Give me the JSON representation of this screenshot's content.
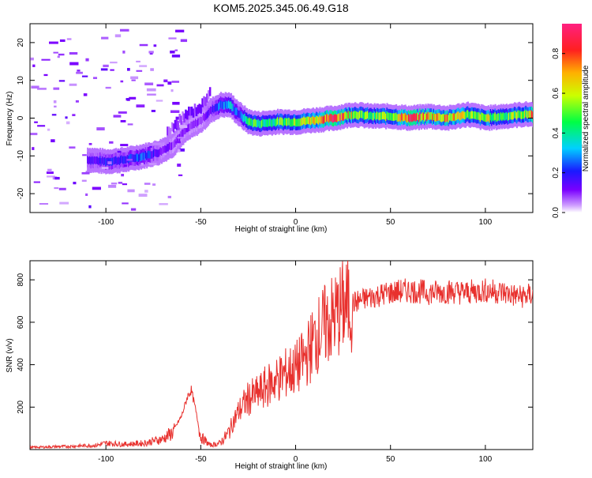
{
  "title": "KOM5.2025.345.06.49.G18",
  "chart_data": [
    {
      "type": "heatmap",
      "title": "KOM5.2025.345.06.49.G18",
      "xlabel": "Height of straight line (km)",
      "ylabel": "Frequency (Hz)",
      "xlim": [
        -140,
        125
      ],
      "ylim": [
        -25,
        25
      ],
      "xticks": [
        -100,
        -50,
        0,
        50,
        100
      ],
      "xtick_labels": [
        "-100",
        "-50",
        "0",
        "50",
        "100"
      ],
      "yticks": [
        -20,
        -10,
        0,
        10,
        20
      ],
      "ytick_labels": [
        "-20",
        "-10",
        "0",
        "10",
        "20"
      ],
      "colorbar": {
        "label": "Normalized spectral amplitude",
        "range": [
          0,
          0.95
        ],
        "ticks": [
          0.0,
          0.2,
          0.4,
          0.6,
          0.8
        ],
        "tick_labels": [
          "0.0",
          "0.2",
          "0.4",
          "0.6",
          "0.8"
        ],
        "colormap": "rainbow"
      },
      "ridge": {
        "x": [
          -110,
          -100,
          -90,
          -80,
          -72,
          -65,
          -58,
          -50,
          -45,
          -40,
          -35,
          -30,
          -25,
          -20,
          -10,
          0,
          10,
          20,
          30,
          40,
          50,
          60,
          70,
          80,
          90,
          100,
          110,
          120,
          125
        ],
        "freq": [
          -11,
          -11.5,
          -11,
          -10,
          -9,
          -7,
          -3,
          -0.5,
          2,
          3.5,
          3.5,
          1,
          -1,
          -1.5,
          -1,
          -1,
          -0.5,
          0,
          1,
          0.5,
          0.5,
          0,
          0.5,
          0,
          1,
          0,
          0.5,
          1,
          1
        ],
        "amplitude": [
          0.15,
          0.2,
          0.2,
          0.25,
          0.15,
          0.1,
          0.1,
          0.1,
          0.15,
          0.3,
          0.35,
          0.2,
          0.5,
          0.45,
          0.5,
          0.55,
          0.7,
          0.9,
          0.6,
          0.5,
          0.6,
          0.85,
          0.7,
          0.75,
          0.55,
          0.6,
          0.5,
          0.55,
          0.8
        ]
      }
    },
    {
      "type": "line",
      "xlabel": "Height of straight line (km)",
      "ylabel": "SNR (v/v)",
      "xlim": [
        -140,
        125
      ],
      "ylim": [
        0,
        890
      ],
      "xticks": [
        -100,
        -50,
        0,
        50,
        100
      ],
      "xtick_labels": [
        "-100",
        "-50",
        "0",
        "50",
        "100"
      ],
      "yticks": [
        200,
        400,
        600,
        800
      ],
      "ytick_labels": [
        "200",
        "400",
        "600",
        "800"
      ],
      "series": [
        {
          "name": "SNR",
          "color": "#e8312e",
          "x": [
            -140,
            -120,
            -105,
            -100,
            -90,
            -80,
            -70,
            -65,
            -60,
            -57,
            -55,
            -53,
            -50,
            -45,
            -40,
            -36,
            -33,
            -30,
            -25,
            -20,
            -15,
            -10,
            -5,
            0,
            5,
            10,
            15,
            20,
            25,
            30,
            40,
            50,
            60,
            70,
            80,
            90,
            100,
            110,
            118,
            125
          ],
          "y": [
            10,
            15,
            20,
            30,
            25,
            30,
            50,
            80,
            160,
            250,
            280,
            200,
            60,
            20,
            30,
            70,
            130,
            180,
            240,
            260,
            300,
            330,
            360,
            380,
            430,
            520,
            580,
            620,
            670,
            690,
            720,
            740,
            750,
            740,
            745,
            740,
            750,
            740,
            720,
            730
          ]
        }
      ]
    }
  ]
}
